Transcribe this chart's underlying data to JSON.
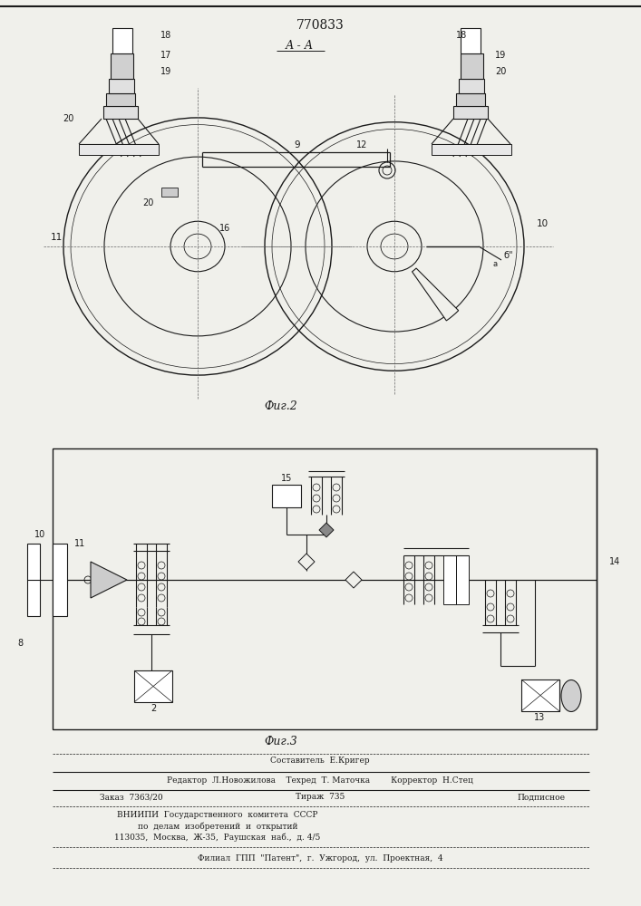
{
  "title": "770833",
  "fig2_label": "А - А",
  "fig2_caption": "Фиг.2",
  "fig3_caption": "Фиг.3",
  "bg_color": "#f0f0eb",
  "line_color": "#1a1a1a"
}
